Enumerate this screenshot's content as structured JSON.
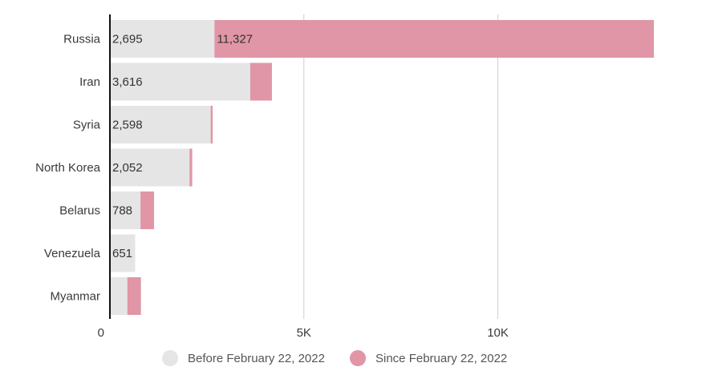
{
  "chart_data": {
    "type": "bar",
    "orientation": "horizontal",
    "stacked": true,
    "categories": [
      "Russia",
      "Iran",
      "Syria",
      "North Korea",
      "Belarus",
      "Venezuela",
      "Myanmar"
    ],
    "series": [
      {
        "name": "Before February 22, 2022",
        "color": "#e5e5e5",
        "values": [
          2695,
          3616,
          2598,
          2052,
          788,
          651,
          450
        ],
        "labels": [
          "2,695",
          "3,616",
          "2,598",
          "2,052",
          "788",
          "651",
          ""
        ]
      },
      {
        "name": "Since February 22, 2022",
        "color": "#e096a6",
        "values": [
          11327,
          560,
          50,
          70,
          350,
          0,
          350
        ],
        "labels": [
          "11,327",
          "",
          "",
          "",
          "",
          "",
          ""
        ]
      }
    ],
    "xlim": [
      0,
      14000
    ],
    "xticks": [
      0,
      5000,
      10000
    ],
    "xtick_labels": [
      "0",
      "5K",
      "10K"
    ],
    "grid": true,
    "legend_position": "bottom"
  }
}
